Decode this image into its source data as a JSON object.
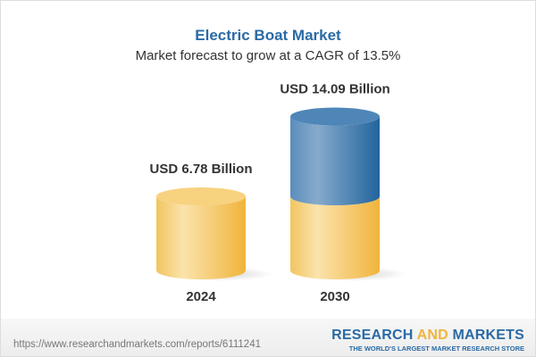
{
  "chart_data": {
    "type": "bar",
    "style": "3d-cylinder",
    "title": "Electric Boat Market",
    "subtitle": "Market forecast to grow at a CAGR of 13.5%",
    "categories": [
      "2024",
      "2030"
    ],
    "values": [
      6.78,
      14.09
    ],
    "unit": "USD Billion",
    "data_labels": [
      "USD 6.78 Billion",
      "USD 14.09 Billion"
    ],
    "colors": {
      "base": "#f3c35a",
      "growth": "#3f7fb5",
      "title": "#2a6aa5"
    }
  },
  "footer": {
    "url": "https://www.researchandmarkets.com/reports/6111241",
    "logo_part1": "RESEARCH ",
    "logo_part2": "AND",
    "logo_part3": " MARKETS",
    "tagline": "THE WORLD'S LARGEST MARKET RESEARCH STORE"
  }
}
